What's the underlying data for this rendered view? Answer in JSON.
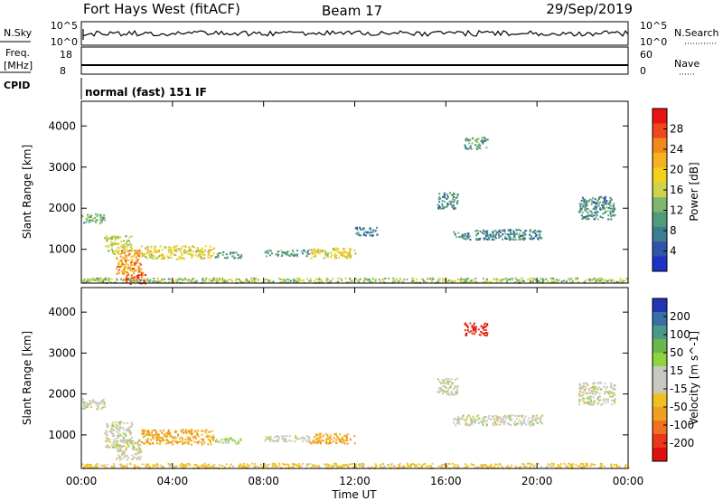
{
  "header": {
    "station": "Fort Hays West (fitACF)",
    "beam": "Beam 17",
    "date": "29/Sep/2019"
  },
  "strips": {
    "nsky_label": "N.Sky",
    "nsky_ticks": [
      "10^5",
      "10^0"
    ],
    "nsky_right_ticks": [
      "10^5",
      "10^0"
    ],
    "nsearch_label": "N.Search",
    "freq_label_line1": "Freq.",
    "freq_label_line2": "[MHz]",
    "freq_ticks": [
      "18",
      "8"
    ],
    "nave_ticks": [
      "60",
      "0"
    ],
    "nave_label": "Nave",
    "cpid_label": "CPID",
    "cpid_value": "normal (fast) 151 IF"
  },
  "legend_power": {
    "label": "Power [dB]",
    "ticks": [
      "28",
      "24",
      "20",
      "16",
      "12",
      "8",
      "4"
    ],
    "colors": [
      "#e81414",
      "#f0481c",
      "#f08a1a",
      "#f5b21e",
      "#f2d21a",
      "#cfd24a",
      "#7db86c",
      "#4f9c7a",
      "#3e7c92",
      "#2e55a8",
      "#1e32c8"
    ]
  },
  "legend_velocity": {
    "label": "Velocity [m s^-1]",
    "ticks": [
      "200",
      "100",
      "50",
      "15",
      "-15",
      "-50",
      "-100",
      "-200"
    ],
    "colors": [
      "#2234b4",
      "#3a6ea8",
      "#4a9a8a",
      "#6ab84a",
      "#8ed43e",
      "#c8c8c0",
      "#c8c8c0",
      "#f0c020",
      "#f0a020",
      "#f07020",
      "#e83818",
      "#e01010"
    ]
  },
  "chart_data": [
    {
      "type": "heatmap",
      "title": "",
      "quantity": "Power",
      "xlabel": "",
      "ylabel": "Slant Range [km]",
      "x_ticks": [
        "00:00",
        "04:00",
        "08:00",
        "12:00",
        "16:00",
        "20:00",
        "00:00"
      ],
      "y_ticks": [
        "1000",
        "2000",
        "3000",
        "4000"
      ],
      "xlim": [
        0,
        24
      ],
      "ylim": [
        180,
        4600
      ],
      "colorbar_ticks": [
        4,
        8,
        12,
        16,
        20,
        24,
        28
      ],
      "patches": [
        {
          "t": [
            0.0,
            1.0
          ],
          "r": [
            1650,
            1900
          ],
          "p": 12
        },
        {
          "t": [
            1.0,
            2.2
          ],
          "r": [
            900,
            1350
          ],
          "p": 16
        },
        {
          "t": [
            1.5,
            2.6
          ],
          "r": [
            400,
            1000
          ],
          "p": 24
        },
        {
          "t": [
            1.9,
            2.8
          ],
          "r": [
            180,
            450
          ],
          "p": 30
        },
        {
          "t": [
            2.6,
            5.8
          ],
          "r": [
            780,
            1100
          ],
          "p": 18
        },
        {
          "t": [
            5.8,
            7.0
          ],
          "r": [
            800,
            950
          ],
          "p": 10
        },
        {
          "t": [
            8.0,
            10.0
          ],
          "r": [
            850,
            1000
          ],
          "p": 10
        },
        {
          "t": [
            10.0,
            12.0
          ],
          "r": [
            800,
            1050
          ],
          "p": 18
        },
        {
          "t": [
            12.0,
            13.0
          ],
          "r": [
            1350,
            1550
          ],
          "p": 6
        },
        {
          "t": [
            15.6,
            16.5
          ],
          "r": [
            2000,
            2400
          ],
          "p": 8
        },
        {
          "t": [
            16.3,
            20.2
          ],
          "r": [
            1250,
            1500
          ],
          "p": 8
        },
        {
          "t": [
            16.8,
            17.8
          ],
          "r": [
            3450,
            3750
          ],
          "p": 10
        },
        {
          "t": [
            21.8,
            23.4
          ],
          "r": [
            1750,
            2300
          ],
          "p": 8
        },
        {
          "t": [
            0.0,
            24.0
          ],
          "r": [
            200,
            320
          ],
          "p": 14
        }
      ]
    },
    {
      "type": "heatmap",
      "title": "",
      "quantity": "Velocity",
      "xlabel": "Time UT",
      "ylabel": "Slant Range [km]",
      "x_ticks": [
        "00:00",
        "04:00",
        "08:00",
        "12:00",
        "16:00",
        "20:00",
        "00:00"
      ],
      "y_ticks": [
        "1000",
        "2000",
        "3000",
        "4000"
      ],
      "xlim": [
        0,
        24
      ],
      "ylim": [
        180,
        4600
      ],
      "colorbar_ticks": [
        200,
        100,
        50,
        15,
        -15,
        -50,
        -100,
        -200
      ],
      "patches": [
        {
          "t": [
            0.0,
            1.0
          ],
          "r": [
            1650,
            1900
          ],
          "v": 0
        },
        {
          "t": [
            1.0,
            2.2
          ],
          "r": [
            700,
            1350
          ],
          "v": 0
        },
        {
          "t": [
            1.5,
            2.6
          ],
          "r": [
            400,
            900
          ],
          "v": 0
        },
        {
          "t": [
            2.6,
            5.8
          ],
          "r": [
            780,
            1150
          ],
          "v": -60
        },
        {
          "t": [
            5.8,
            7.0
          ],
          "r": [
            800,
            950
          ],
          "v": 20
        },
        {
          "t": [
            8.0,
            10.0
          ],
          "r": [
            850,
            1000
          ],
          "v": 0
        },
        {
          "t": [
            10.0,
            12.0
          ],
          "r": [
            800,
            1050
          ],
          "v": -60
        },
        {
          "t": [
            15.6,
            16.5
          ],
          "r": [
            2000,
            2400
          ],
          "v": 0
        },
        {
          "t": [
            16.3,
            20.2
          ],
          "r": [
            1250,
            1500
          ],
          "v": 0
        },
        {
          "t": [
            16.8,
            17.8
          ],
          "r": [
            3450,
            3750
          ],
          "v": -250
        },
        {
          "t": [
            21.8,
            23.4
          ],
          "r": [
            1750,
            2300
          ],
          "v": 0
        },
        {
          "t": [
            0.0,
            24.0
          ],
          "r": [
            200,
            320
          ],
          "v": -30
        }
      ]
    }
  ]
}
